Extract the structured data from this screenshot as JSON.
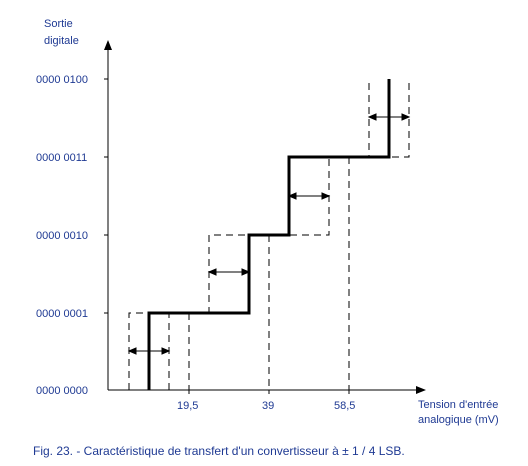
{
  "axis_title_y_line1": "Sortie",
  "axis_title_y_line2": "digitale",
  "axis_title_x_line1": "Tension d'entrée",
  "axis_title_x_line2": "analogique (mV)",
  "caption": "Fig. 23. - Caractéristique de transfert d'un convertisseur à ± 1 / 4 LSB.",
  "y_codes": [
    "0000 0000",
    "0000 0001",
    "0000 0010",
    "0000 0011",
    "0000 0100"
  ],
  "x_tick_labels": [
    "19,5",
    "39",
    "58,5"
  ],
  "colors": {
    "text": "#1f3a93",
    "lines": "#000000"
  }
}
